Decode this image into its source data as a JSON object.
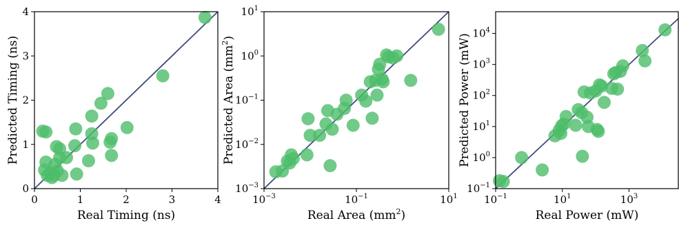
{
  "colors": {
    "marker": "#4dbd6a",
    "diagonal": "#3b4a7a",
    "axes": "#000000"
  },
  "chart_data": [
    {
      "type": "scatter",
      "title": "",
      "xlabel": "Real Timing (ns)",
      "ylabel": "Predicted Timing (ns)",
      "xscale": "linear",
      "yscale": "linear",
      "xlim": [
        0,
        4
      ],
      "ylim": [
        0,
        4
      ],
      "xticks": [
        "0",
        "1",
        "2",
        "3",
        "4"
      ],
      "yticks": [
        "0",
        "1",
        "2",
        "3",
        "4"
      ],
      "diagonal": true,
      "points": [
        [
          0.18,
          1.3
        ],
        [
          0.25,
          1.28
        ],
        [
          0.25,
          0.6
        ],
        [
          0.22,
          0.42
        ],
        [
          0.28,
          0.3
        ],
        [
          0.35,
          0.35
        ],
        [
          0.38,
          0.25
        ],
        [
          0.42,
          0.3
        ],
        [
          0.45,
          0.55
        ],
        [
          0.48,
          0.95
        ],
        [
          0.5,
          0.4
        ],
        [
          0.55,
          0.7
        ],
        [
          0.55,
          0.9
        ],
        [
          0.6,
          0.3
        ],
        [
          0.7,
          0.7
        ],
        [
          0.88,
          0.97
        ],
        [
          0.9,
          1.35
        ],
        [
          0.92,
          0.33
        ],
        [
          1.18,
          0.63
        ],
        [
          1.25,
          1.64
        ],
        [
          1.25,
          1.24
        ],
        [
          1.27,
          1.03
        ],
        [
          1.45,
          1.93
        ],
        [
          1.6,
          2.15
        ],
        [
          1.65,
          1.05
        ],
        [
          1.68,
          1.13
        ],
        [
          1.68,
          0.75
        ],
        [
          2.02,
          1.38
        ],
        [
          2.8,
          2.55
        ],
        [
          3.72,
          3.87
        ]
      ]
    },
    {
      "type": "scatter",
      "title": "",
      "xlabel": "Real Area (mm²)",
      "ylabel": "Predicted Area (mm²)",
      "xscale": "log",
      "yscale": "log",
      "xlim": [
        0.001,
        10
      ],
      "ylim": [
        0.001,
        10
      ],
      "xticks": [
        "10^-3",
        "10^-1",
        "10^1"
      ],
      "yticks": [
        "10^-3",
        "10^-2",
        "10^-1",
        "10^0",
        "10^1"
      ],
      "diagonal": true,
      "points": [
        [
          0.0018,
          0.0024
        ],
        [
          0.0025,
          0.0025
        ],
        [
          0.0032,
          0.0042
        ],
        [
          0.0036,
          0.0038
        ],
        [
          0.0039,
          0.0058
        ],
        [
          0.0043,
          0.0048
        ],
        [
          0.0085,
          0.0058
        ],
        [
          0.009,
          0.038
        ],
        [
          0.01,
          0.016
        ],
        [
          0.016,
          0.016
        ],
        [
          0.022,
          0.029
        ],
        [
          0.024,
          0.058
        ],
        [
          0.027,
          0.0033
        ],
        [
          0.03,
          0.022
        ],
        [
          0.038,
          0.048
        ],
        [
          0.055,
          0.065
        ],
        [
          0.06,
          0.1
        ],
        [
          0.085,
          0.027
        ],
        [
          0.13,
          0.13
        ],
        [
          0.16,
          0.095
        ],
        [
          0.2,
          0.26
        ],
        [
          0.22,
          0.039
        ],
        [
          0.26,
          0.28
        ],
        [
          0.28,
          0.13
        ],
        [
          0.3,
          0.5
        ],
        [
          0.32,
          0.65
        ],
        [
          0.36,
          0.3
        ],
        [
          0.38,
          0.26
        ],
        [
          0.45,
          1.05
        ],
        [
          0.5,
          0.95
        ],
        [
          0.62,
          0.9
        ],
        [
          0.75,
          1.0
        ],
        [
          1.5,
          0.28
        ],
        [
          6.0,
          4.0
        ]
      ]
    },
    {
      "type": "scatter",
      "title": "",
      "xlabel": "Real Power (mW)",
      "ylabel": "Predicted Power (mW)",
      "xscale": "log",
      "yscale": "log",
      "xlim": [
        0.1,
        30000
      ],
      "ylim": [
        0.1,
        50000
      ],
      "xticks": [
        "10^-1",
        "10^1",
        "10^3"
      ],
      "yticks": [
        "10^-1",
        "10^0",
        "10^1",
        "10^2",
        "10^3",
        "10^4"
      ],
      "diagonal": true,
      "points": [
        [
          0.13,
          0.18
        ],
        [
          0.17,
          0.17
        ],
        [
          0.6,
          1.0
        ],
        [
          2.5,
          0.4
        ],
        [
          6.0,
          5.0
        ],
        [
          8.0,
          7.5
        ],
        [
          9.0,
          6.0
        ],
        [
          9.5,
          10.5
        ],
        [
          11.0,
          12.0
        ],
        [
          13.0,
          21.0
        ],
        [
          25.0,
          11.0
        ],
        [
          30.0,
          35.0
        ],
        [
          38.0,
          28.0
        ],
        [
          40.0,
          1.1
        ],
        [
          45.0,
          130.0
        ],
        [
          55.0,
          20.0
        ],
        [
          60.0,
          10.0
        ],
        [
          70.0,
          120.0
        ],
        [
          100.0,
          140.0
        ],
        [
          110.0,
          8.0
        ],
        [
          120.0,
          7.0
        ],
        [
          130.0,
          220.0
        ],
        [
          150.0,
          200.0
        ],
        [
          180.0,
          60.0
        ],
        [
          300.0,
          170.0
        ],
        [
          350.0,
          500.0
        ],
        [
          400.0,
          550.0
        ],
        [
          450.0,
          160.0
        ],
        [
          550.0,
          600.0
        ],
        [
          650.0,
          900.0
        ],
        [
          2500.0,
          2800.0
        ],
        [
          3000.0,
          1300.0
        ],
        [
          12000.0,
          13000.0
        ]
      ]
    }
  ]
}
